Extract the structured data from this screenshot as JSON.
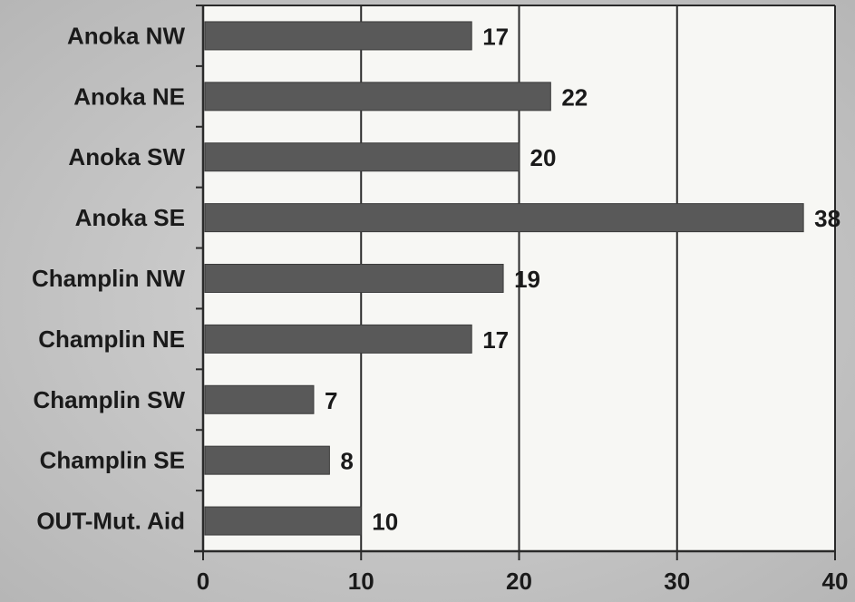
{
  "chart_data": {
    "type": "bar",
    "orientation": "horizontal",
    "categories": [
      "Anoka NW",
      "Anoka NE",
      "Anoka SW",
      "Anoka SE",
      "Champlin NW",
      "Champlin NE",
      "Champlin SW",
      "Champlin SE",
      "OUT-Mut. Aid"
    ],
    "values": [
      17,
      22,
      20,
      38,
      19,
      17,
      7,
      8,
      10
    ],
    "data_labels": [
      "17",
      "22",
      "20",
      "38",
      "19",
      "17",
      "7",
      "8",
      "10"
    ],
    "xlim": [
      0,
      40
    ],
    "xticks": [
      0,
      10,
      20,
      30,
      40
    ],
    "xtick_labels": [
      "0",
      "10",
      "20",
      "30",
      "40"
    ],
    "title": "",
    "xlabel": "",
    "ylabel": "",
    "grid": "vertical",
    "legend": "none",
    "colors": {
      "bar": "#595959",
      "plot_background": "#f7f7f4",
      "page_background": "#c8c8c8",
      "grid": "#2a2a2a",
      "text": "#1a1a1a"
    }
  }
}
